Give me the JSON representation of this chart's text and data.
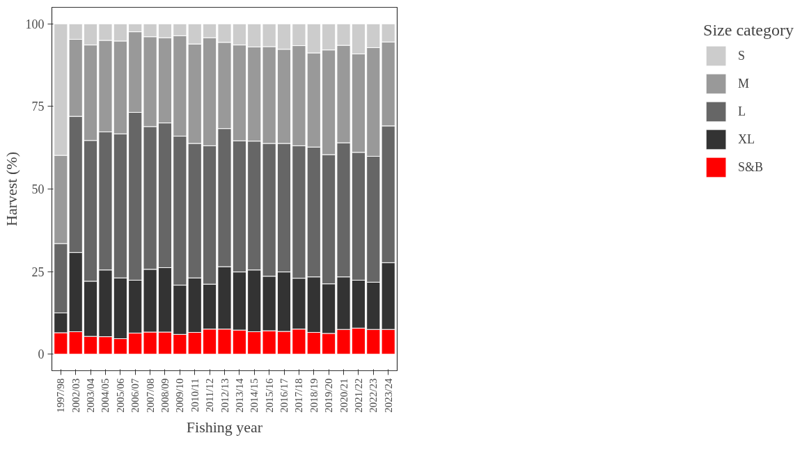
{
  "chart_data": {
    "type": "bar",
    "stacked": true,
    "xlabel": "Fishing year",
    "ylabel": "Harvest (%)",
    "legend_title": "Size category",
    "legend": "right",
    "grid": false,
    "categories": [
      "1997/98",
      "2002/03",
      "2003/04",
      "2004/05",
      "2005/06",
      "2006/07",
      "2007/08",
      "2008/09",
      "2009/10",
      "2010/11",
      "2011/12",
      "2012/13",
      "2013/14",
      "2014/15",
      "2015/16",
      "2016/17",
      "2017/18",
      "2018/19",
      "2019/20",
      "2020/21",
      "2021/22",
      "2022/23",
      "2023/24"
    ],
    "ylim": [
      -5,
      105
    ],
    "yticks": [
      0,
      25,
      50,
      75,
      100
    ],
    "series": [
      {
        "name": "S&B",
        "color": "#ff0000",
        "values": [
          6.5,
          6.8,
          5.4,
          5.3,
          4.7,
          6.4,
          6.7,
          6.7,
          6.0,
          6.6,
          7.6,
          7.6,
          7.3,
          6.8,
          7.1,
          6.9,
          7.6,
          6.6,
          6.3,
          7.5,
          7.9,
          7.5,
          7.5
        ]
      },
      {
        "name": "XL",
        "color": "#333333",
        "values": [
          6.0,
          24.0,
          16.7,
          20.2,
          18.4,
          16.0,
          19.0,
          19.5,
          14.9,
          16.5,
          13.6,
          18.9,
          17.6,
          18.7,
          16.5,
          18.0,
          15.4,
          16.8,
          15.0,
          15.9,
          14.5,
          14.3,
          20.2
        ]
      },
      {
        "name": "L",
        "color": "#666666",
        "values": [
          21.0,
          41.2,
          42.6,
          41.8,
          43.6,
          50.8,
          43.2,
          43.8,
          45.1,
          40.7,
          41.9,
          41.8,
          39.7,
          39.0,
          40.2,
          38.9,
          40.1,
          39.3,
          39.1,
          40.6,
          38.7,
          38.1,
          41.4
        ]
      },
      {
        "name": "M",
        "color": "#999999",
        "values": [
          26.7,
          23.3,
          28.9,
          27.7,
          28.1,
          24.4,
          27.2,
          25.8,
          30.4,
          30.1,
          32.7,
          26.1,
          29.0,
          28.5,
          29.3,
          28.5,
          30.3,
          28.5,
          31.7,
          29.5,
          29.8,
          32.9,
          25.4
        ]
      },
      {
        "name": "S",
        "color": "#cccccc",
        "values": [
          39.8,
          4.7,
          6.4,
          5.0,
          5.2,
          2.4,
          3.9,
          4.2,
          3.6,
          6.1,
          4.2,
          5.6,
          6.4,
          7.0,
          6.9,
          7.7,
          6.6,
          8.8,
          7.9,
          6.5,
          9.1,
          7.2,
          5.5
        ]
      }
    ]
  }
}
